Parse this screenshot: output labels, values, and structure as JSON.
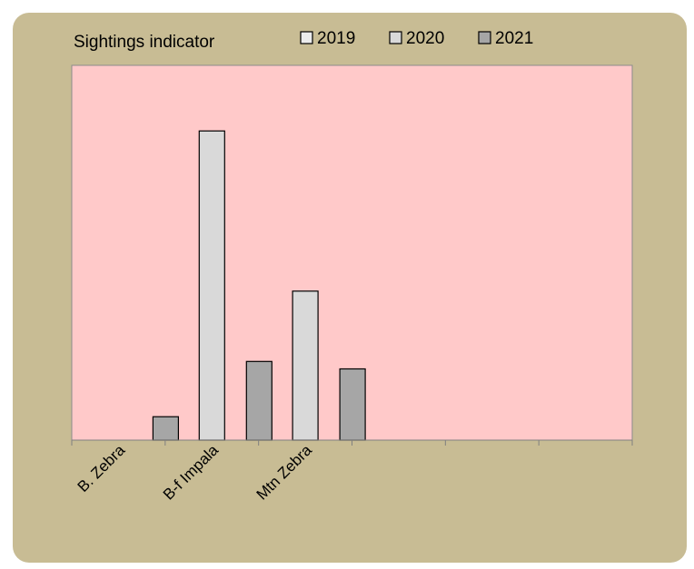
{
  "chart_data": {
    "type": "bar",
    "title": "Sightings indicator",
    "categories": [
      "B. Zebra",
      "B-f Impala",
      "Mtn Zebra",
      "",
      "",
      ""
    ],
    "series": [
      {
        "name": "2019",
        "values": [
          null,
          null,
          null,
          null,
          null,
          null
        ]
      },
      {
        "name": "2020",
        "values": [
          0,
          16.5,
          7.95,
          null,
          null,
          null
        ]
      },
      {
        "name": "2021",
        "values": [
          1.25,
          4.2,
          3.8,
          null,
          null,
          null
        ]
      }
    ],
    "ylim": [
      0,
      20
    ],
    "grid": false,
    "legend_position": "top",
    "colors": {
      "background": "#c8bc94",
      "plot_area": "#ffc9c9",
      "series_2019": "#ececec",
      "series_2020": "#d9d9d9",
      "series_2021": "#a6a6a6",
      "outline": "#000000"
    }
  }
}
